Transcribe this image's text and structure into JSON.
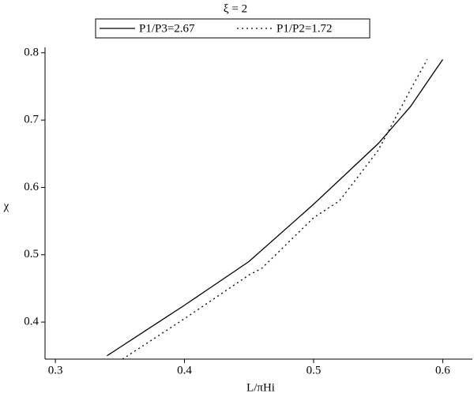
{
  "chart_data": {
    "type": "line",
    "title": "ξ = 2",
    "xlabel": "L/πHi",
    "ylabel": "χ",
    "series": [
      {
        "name": "P1/P3=2.67",
        "color": "#000000",
        "dash": "solid",
        "x": [
          0.34,
          0.38,
          0.4,
          0.45,
          0.5,
          0.55,
          0.575,
          0.6
        ],
        "values": [
          0.35,
          0.4,
          0.425,
          0.49,
          0.575,
          0.665,
          0.72,
          0.79
        ]
      },
      {
        "name": "P1/P2=1.72",
        "color": "#000000",
        "dash": "dotted",
        "x": [
          0.352,
          0.4,
          0.45,
          0.46,
          0.5,
          0.52,
          0.55,
          0.575,
          0.588
        ],
        "values": [
          0.345,
          0.405,
          0.47,
          0.48,
          0.555,
          0.58,
          0.655,
          0.745,
          0.79
        ]
      }
    ],
    "xlim": [
      0.292,
      0.623
    ],
    "ylim": [
      0.345,
      0.808
    ],
    "xticks": [
      0.3,
      0.4,
      0.5,
      0.6
    ],
    "yticks": [
      0.4,
      0.5,
      0.6,
      0.7,
      0.8
    ],
    "legend": "top",
    "grid": false
  }
}
